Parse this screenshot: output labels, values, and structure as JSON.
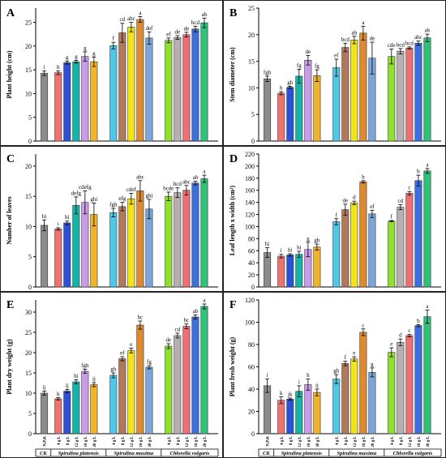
{
  "colors": {
    "CK": "#8c8c8c",
    "g1": "#f0746e",
    "g2": "#2b52d6",
    "g3": "#12b5a6",
    "g4": "#c99be8",
    "g5": "#f0b429",
    "m1": "#4dc8e8",
    "m2": "#b07a5a",
    "m3": "#f3e418",
    "m4": "#e08a30",
    "m5": "#7aa6dc",
    "c1": "#8ee22e",
    "c2": "#b8b0b0",
    "c3": "#ef6f75",
    "c4": "#3d6fe0",
    "c5": "#2ec27a"
  },
  "x_axis": {
    "ck_label": "CK",
    "group_labels": [
      "Spirulina platensis",
      "Spirulina maxima",
      "Chlorella vulgaris"
    ],
    "tick_labels": [
      [
        "N,P,K"
      ],
      [
        "4 g/L",
        "8 g/L",
        "12 g/L",
        "16 g/L",
        "20 g/L"
      ],
      [
        "4 g/L",
        "8 g/L",
        "12 g/L",
        "16 g/L",
        "20 g/L"
      ],
      [
        "4 g/L",
        "8 g/L",
        "12 g/L",
        "16 g/L",
        "20 g/L"
      ]
    ]
  },
  "chart_data": [
    {
      "panel": "A",
      "type": "bar",
      "ylabel": "Plant height (cm)",
      "ylim": [
        0,
        28
      ],
      "yticks": [
        0,
        5,
        10,
        15,
        20,
        25
      ],
      "values": [
        14.3,
        14.4,
        16.5,
        16.7,
        17.8,
        16.7,
        20.1,
        22.8,
        24.0,
        25.6,
        21.7,
        21.2,
        21.8,
        22.4,
        23.6,
        24.9
      ],
      "errors": [
        0.5,
        0.4,
        0.3,
        0.3,
        1.0,
        1.0,
        0.7,
        2.0,
        1.0,
        0.6,
        1.3,
        0.5,
        0.4,
        0.5,
        0.6,
        1.0
      ],
      "letters": [
        "i",
        "h",
        "g",
        "g",
        "g",
        "g",
        "f",
        "cd",
        "abc",
        "a",
        "def",
        "ef",
        "de",
        "de",
        "bcd",
        "ab"
      ]
    },
    {
      "panel": "B",
      "type": "bar",
      "ylabel": "Stem diameter (cm)",
      "ylim": [
        0,
        25
      ],
      "yticks": [
        0,
        5,
        10,
        15,
        20,
        25
      ],
      "values": [
        11.7,
        9.0,
        10.1,
        12.2,
        15.2,
        12.3,
        13.8,
        17.6,
        19.0,
        20.3,
        15.6,
        15.9,
        16.9,
        17.5,
        18.4,
        19.4
      ],
      "errors": [
        0.5,
        0.3,
        0.2,
        1.3,
        0.9,
        1.1,
        1.6,
        0.8,
        0.7,
        1.3,
        3.0,
        1.4,
        0.5,
        0.2,
        0.4,
        0.7
      ],
      "letters": [
        "fgh",
        "h",
        "gh",
        "fg",
        "de",
        "fg",
        "ef",
        "bcd",
        "ab",
        "a",
        "de",
        "cde",
        "bcd",
        "bcd",
        "abc",
        "ab"
      ]
    },
    {
      "panel": "C",
      "type": "bar",
      "ylabel": "Number of leaves",
      "ylim": [
        0,
        22
      ],
      "yticks": [
        0,
        5,
        10,
        15,
        20
      ],
      "values": [
        10.2,
        9.6,
        10.6,
        13.5,
        14.0,
        12.0,
        12.3,
        13.3,
        14.6,
        15.9,
        12.9,
        15.0,
        15.6,
        16.0,
        17.2,
        17.9
      ],
      "errors": [
        0.9,
        0.2,
        0.3,
        1.4,
        1.9,
        1.9,
        0.7,
        0.7,
        0.9,
        1.7,
        1.6,
        0.7,
        0.8,
        0.8,
        0.3,
        0.6
      ],
      "letters": [
        "hi",
        "i",
        "hi",
        "defg",
        "cdefg",
        "ghi",
        "fgh",
        "efg",
        "cdef",
        "abc",
        "ghi",
        "bcde",
        "bcd",
        "abc",
        "ab",
        "a"
      ]
    },
    {
      "panel": "D",
      "type": "bar",
      "ylabel": "Leaf length x width (cm²)",
      "ylim": [
        0,
        220
      ],
      "yticks": [
        0,
        20,
        40,
        60,
        80,
        100,
        120,
        140,
        160,
        180,
        200,
        220
      ],
      "values": [
        57,
        51,
        53,
        54,
        62,
        66,
        108,
        128,
        139,
        174,
        121,
        109,
        132,
        155,
        176,
        192
      ],
      "errors": [
        8,
        3,
        2,
        5,
        12,
        5,
        5,
        9,
        3,
        2,
        6,
        1,
        4,
        3,
        9,
        4
      ],
      "letters": [
        "hi",
        "i",
        "hi",
        "hi",
        "g",
        "gh",
        "f",
        "de",
        "d",
        "b",
        "ef",
        "f",
        "cd",
        "c",
        "b",
        "a"
      ]
    },
    {
      "panel": "E",
      "type": "bar",
      "ylabel": "Plant dry weight (g)",
      "ylim": [
        0,
        33
      ],
      "yticks": [
        0,
        5,
        10,
        15,
        20,
        25,
        30
      ],
      "values": [
        10.0,
        8.6,
        10.5,
        12.8,
        15.4,
        12.1,
        14.4,
        18.5,
        20.5,
        26.8,
        16.4,
        21.6,
        24.2,
        26.5,
        28.8,
        31.4
      ],
      "errors": [
        0.5,
        0.3,
        0.4,
        0.5,
        0.5,
        0.5,
        0.6,
        0.5,
        0.6,
        1.0,
        0.4,
        0.6,
        0.6,
        0.6,
        0.5,
        0.6
      ],
      "letters": [
        "ij",
        "k",
        "ij",
        "hi",
        "fgh",
        "ij",
        "gh",
        "ef",
        "e",
        "bc",
        "fg",
        "de",
        "cd",
        "bc",
        "ab",
        "a"
      ]
    },
    {
      "panel": "F",
      "type": "bar",
      "ylabel": "Plant fresh weight (g)",
      "ylim": [
        0,
        120
      ],
      "yticks": [
        0,
        20,
        40,
        60,
        80,
        100,
        120
      ],
      "values": [
        43,
        30,
        31,
        38,
        44,
        37,
        49,
        63,
        67,
        91,
        55,
        73,
        82,
        88,
        97,
        105
      ],
      "errors": [
        6,
        3,
        1,
        5,
        5,
        3,
        4,
        2,
        2,
        3,
        4,
        4,
        3,
        1,
        1,
        6
      ],
      "letters": [
        "i",
        "k",
        "jk",
        "i",
        "h",
        "ij",
        "gh",
        "f",
        "e",
        "c",
        "g",
        "e",
        "d",
        "c",
        "b",
        "a"
      ]
    }
  ]
}
